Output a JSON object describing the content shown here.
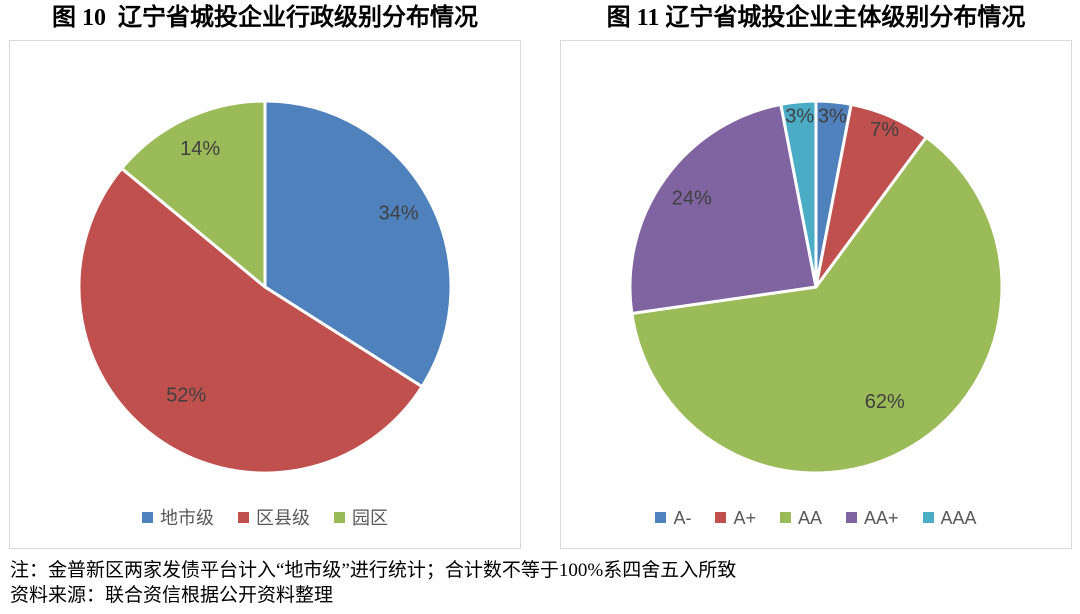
{
  "chart_data": [
    {
      "type": "pie",
      "title": "图 10  辽宁省城投企业行政级别分布情况",
      "categories": [
        "地市级",
        "区县级",
        "园区"
      ],
      "values": [
        34,
        52,
        14
      ],
      "labels": [
        "34%",
        "52%",
        "14%"
      ],
      "unit": "percent",
      "colors": [
        "#4F81BD",
        "#C0504D",
        "#9BBB59"
      ],
      "start_angle_deg": 0,
      "direction": "clockwise",
      "slice_gap_color": "#ffffff",
      "label_color": "#404040",
      "legend_position": "bottom",
      "panel_border_color": "#d9d9d9"
    },
    {
      "type": "pie",
      "title": "图 11 辽宁省城投企业主体级别分布情况",
      "categories": [
        "A-",
        "A+",
        "AA",
        "AA+",
        "AAA"
      ],
      "values": [
        3,
        7,
        62,
        24,
        3
      ],
      "labels": [
        "3%",
        "7%",
        "62%",
        "24%",
        "3%"
      ],
      "unit": "percent",
      "colors": [
        "#4F81BD",
        "#C0504D",
        "#9BBB59",
        "#8064A2",
        "#4BACC6"
      ],
      "start_angle_deg": 0,
      "direction": "clockwise",
      "slice_gap_color": "#ffffff",
      "label_color": "#404040",
      "legend_position": "bottom",
      "panel_border_color": "#d9d9d9"
    }
  ],
  "notes": {
    "note": "注：金普新区两家发债平台计入“地市级”进行统计；合计数不等于100%系四舍五入所致",
    "source": "资料来源：联合资信根据公开资料整理"
  }
}
